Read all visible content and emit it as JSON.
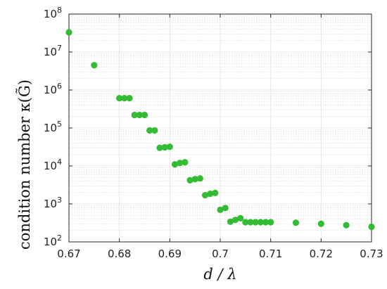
{
  "chart_data": {
    "type": "scatter",
    "xlabel": "d / λ",
    "ylabel": "condition number κ(G̃)",
    "xlim": [
      0.67,
      0.73
    ],
    "ylim": [
      100,
      100000000
    ],
    "yscale": "log",
    "grid": true,
    "legend": "none",
    "color": "#33bb33",
    "xticks": [
      0.67,
      0.68,
      0.69,
      0.7,
      0.71,
      0.72,
      0.73
    ],
    "xtick_labels": [
      "0.67",
      "0.68",
      "0.69",
      "0.7",
      "0.71",
      "0.72",
      "0.73"
    ],
    "yticks": [
      {
        "value": 100,
        "mantissa": "10",
        "exp": "2"
      },
      {
        "value": 1000,
        "mantissa": "10",
        "exp": "3"
      },
      {
        "value": 10000,
        "mantissa": "10",
        "exp": "4"
      },
      {
        "value": 100000,
        "mantissa": "10",
        "exp": "5"
      },
      {
        "value": 1000000,
        "mantissa": "10",
        "exp": "6"
      },
      {
        "value": 10000000,
        "mantissa": "10",
        "exp": "7"
      },
      {
        "value": 100000000,
        "mantissa": "10",
        "exp": "8"
      }
    ],
    "points": [
      {
        "x": 0.67,
        "y": 33000000
      },
      {
        "x": 0.675,
        "y": 4500000
      },
      {
        "x": 0.68,
        "y": 610000
      },
      {
        "x": 0.681,
        "y": 610000
      },
      {
        "x": 0.682,
        "y": 610000
      },
      {
        "x": 0.683,
        "y": 220000
      },
      {
        "x": 0.684,
        "y": 220000
      },
      {
        "x": 0.685,
        "y": 220000
      },
      {
        "x": 0.686,
        "y": 86000
      },
      {
        "x": 0.687,
        "y": 86000
      },
      {
        "x": 0.688,
        "y": 30000
      },
      {
        "x": 0.689,
        "y": 31000
      },
      {
        "x": 0.69,
        "y": 32000
      },
      {
        "x": 0.691,
        "y": 11000
      },
      {
        "x": 0.692,
        "y": 12000
      },
      {
        "x": 0.693,
        "y": 12500
      },
      {
        "x": 0.694,
        "y": 4200
      },
      {
        "x": 0.695,
        "y": 4500
      },
      {
        "x": 0.696,
        "y": 4700
      },
      {
        "x": 0.697,
        "y": 1700
      },
      {
        "x": 0.698,
        "y": 1850
      },
      {
        "x": 0.699,
        "y": 1950
      },
      {
        "x": 0.7,
        "y": 700
      },
      {
        "x": 0.701,
        "y": 780
      },
      {
        "x": 0.702,
        "y": 340
      },
      {
        "x": 0.703,
        "y": 380
      },
      {
        "x": 0.704,
        "y": 420
      },
      {
        "x": 0.705,
        "y": 330
      },
      {
        "x": 0.706,
        "y": 330
      },
      {
        "x": 0.707,
        "y": 330
      },
      {
        "x": 0.708,
        "y": 330
      },
      {
        "x": 0.709,
        "y": 330
      },
      {
        "x": 0.71,
        "y": 330
      },
      {
        "x": 0.715,
        "y": 320
      },
      {
        "x": 0.72,
        "y": 300
      },
      {
        "x": 0.725,
        "y": 275
      },
      {
        "x": 0.73,
        "y": 250
      }
    ]
  }
}
